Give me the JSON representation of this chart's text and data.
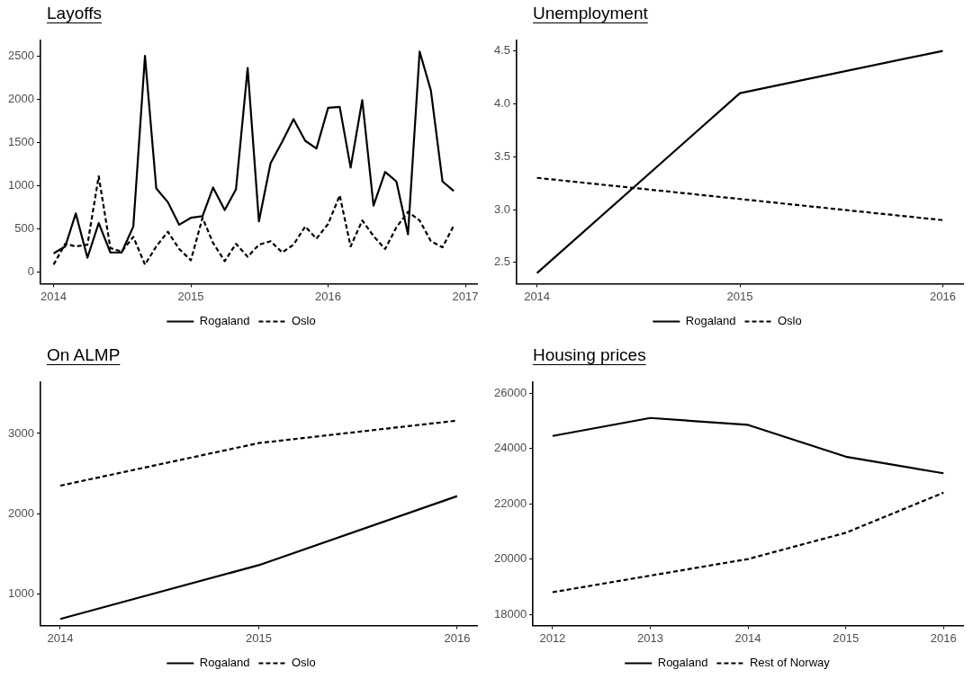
{
  "chart_data": [
    {
      "type": "line",
      "title": "Layoffs",
      "x": [
        "2014-01",
        "2014-02",
        "2014-03",
        "2014-04",
        "2014-05",
        "2014-06",
        "2014-07",
        "2014-08",
        "2014-09",
        "2014-10",
        "2014-11",
        "2014-12",
        "2015-01",
        "2015-02",
        "2015-03",
        "2015-04",
        "2015-05",
        "2015-06",
        "2015-07",
        "2015-08",
        "2015-09",
        "2015-10",
        "2015-11",
        "2015-12",
        "2016-01",
        "2016-02",
        "2016-03",
        "2016-04",
        "2016-05",
        "2016-06",
        "2016-07",
        "2016-08",
        "2016-09",
        "2016-10",
        "2016-11",
        "2016-12"
      ],
      "series": [
        {
          "name": "Rogaland",
          "color": "#000000",
          "line_style": "solid",
          "values": [
            220,
            300,
            680,
            170,
            570,
            230,
            230,
            530,
            2500,
            970,
            810,
            550,
            630,
            650,
            980,
            720,
            960,
            2360,
            590,
            1260,
            1510,
            1770,
            1520,
            1430,
            1900,
            1910,
            1210,
            1990,
            770,
            1160,
            1050,
            440,
            2550,
            2100,
            1050,
            940
          ]
        },
        {
          "name": "Oslo",
          "color": "#000000",
          "line_style": "dashed",
          "values": [
            90,
            330,
            300,
            320,
            1110,
            280,
            240,
            410,
            90,
            300,
            470,
            270,
            140,
            630,
            340,
            130,
            330,
            180,
            320,
            360,
            230,
            320,
            530,
            390,
            560,
            890,
            300,
            600,
            420,
            270,
            520,
            700,
            600,
            360,
            290,
            540
          ]
        }
      ],
      "xlim": [
        "2013-11-27",
        "2017-02-01"
      ],
      "xticks": [
        "2014",
        "2015",
        "2016",
        "2017"
      ],
      "ylim": [
        -130,
        2680
      ],
      "yticks": [
        0,
        500,
        1000,
        1500,
        2000,
        2500
      ],
      "grid": false,
      "legend": "bottom",
      "marker": "none"
    },
    {
      "type": "line",
      "title": "Unemployment",
      "x": [
        2014,
        2015,
        2016
      ],
      "series": [
        {
          "name": "Rogaland",
          "color": "#000000",
          "line_style": "solid",
          "values": [
            2.4,
            4.1,
            4.5
          ]
        },
        {
          "name": "Oslo",
          "color": "#000000",
          "line_style": "dashed",
          "values": [
            3.3,
            3.1,
            2.9
          ]
        }
      ],
      "xlim": [
        2013.9,
        2016.1
      ],
      "xticks": [
        2014,
        2015,
        2016
      ],
      "ylim": [
        2.3,
        4.6
      ],
      "yticks": [
        {
          "value": 2.5,
          "label": "2.5"
        },
        {
          "value": 3,
          "label": "3.0"
        },
        {
          "value": 3.5,
          "label": "3.5"
        },
        {
          "value": 4,
          "label": "4.0"
        },
        {
          "value": 4.5,
          "label": "4.5"
        }
      ],
      "grid": false,
      "legend": "bottom",
      "marker": "none"
    },
    {
      "type": "line",
      "title": "On ALMP",
      "x": [
        2014,
        2015,
        2016
      ],
      "series": [
        {
          "name": "Rogaland",
          "color": "#000000",
          "line_style": "solid",
          "values": [
            690,
            1360,
            2220
          ]
        },
        {
          "name": "Oslo",
          "color": "#000000",
          "line_style": "dashed",
          "values": [
            2350,
            2880,
            3160
          ]
        }
      ],
      "xlim": [
        2013.9,
        2016.1
      ],
      "xticks": [
        2014,
        2015,
        2016
      ],
      "ylim": [
        610,
        3640
      ],
      "yticks": [
        1000,
        2000,
        3000
      ],
      "grid": false,
      "legend": "bottom",
      "marker": "none"
    },
    {
      "type": "line",
      "title": "Housing prices",
      "x": [
        2012,
        2013,
        2014,
        2015,
        2016
      ],
      "series": [
        {
          "name": "Rogaland",
          "color": "#000000",
          "line_style": "solid",
          "values": [
            24450,
            25100,
            24850,
            23700,
            23100
          ]
        },
        {
          "name": "Rest of Norway",
          "color": "#000000",
          "line_style": "dashed",
          "values": [
            18800,
            19400,
            20000,
            20950,
            22400
          ]
        }
      ],
      "xlim": [
        2011.8,
        2016.2
      ],
      "xticks": [
        2012,
        2013,
        2014,
        2015,
        2016
      ],
      "ylim": [
        17600,
        26400
      ],
      "yticks": [
        18000,
        20000,
        22000,
        24000,
        26000
      ],
      "grid": false,
      "legend": "bottom",
      "marker": "none"
    }
  ]
}
